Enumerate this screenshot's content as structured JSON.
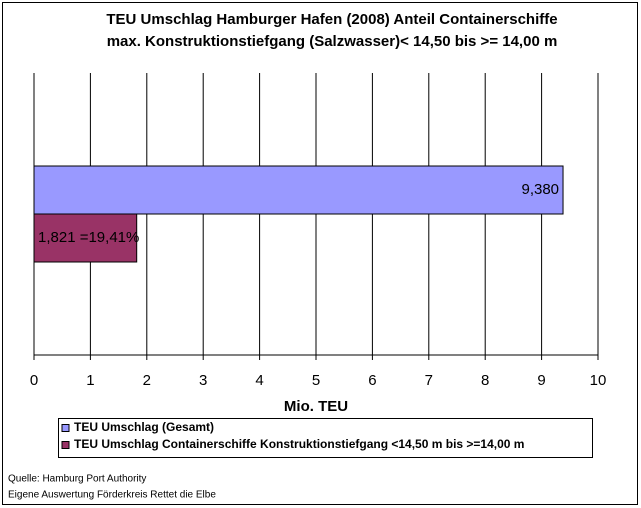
{
  "chart_data": {
    "type": "bar",
    "orientation": "horizontal",
    "title": "TEU Umschlag Hamburger Hafen (2008)  Anteil Containerschiffe",
    "subtitle": "max. Konstruktionstiefgang (Salzwasser)< 14,50 bis >= 14,00 m",
    "categories": [
      null
    ],
    "series": [
      {
        "name": "TEU Umschlag (Gesamt)",
        "color": "#9999ff",
        "values": [
          9.38
        ],
        "value_labels": [
          "9,380"
        ]
      },
      {
        "name": "TEU Umschlag Containerschiffe Konstruktionstiefgang <14,50 m bis >=14,00 m",
        "color": "#993366",
        "values": [
          1.821
        ],
        "value_labels": [
          "1,821 =19,41%"
        ]
      }
    ],
    "xlim": [
      0,
      10
    ],
    "xticks": [
      0,
      1,
      2,
      3,
      4,
      5,
      6,
      7,
      8,
      9,
      10
    ],
    "xlabel": "Mio. TEU",
    "grid": true,
    "notes": [
      "Quelle: Hamburg Port Authority",
      "Eigene Auswertung Förderkreis Rettet die Elbe"
    ]
  }
}
